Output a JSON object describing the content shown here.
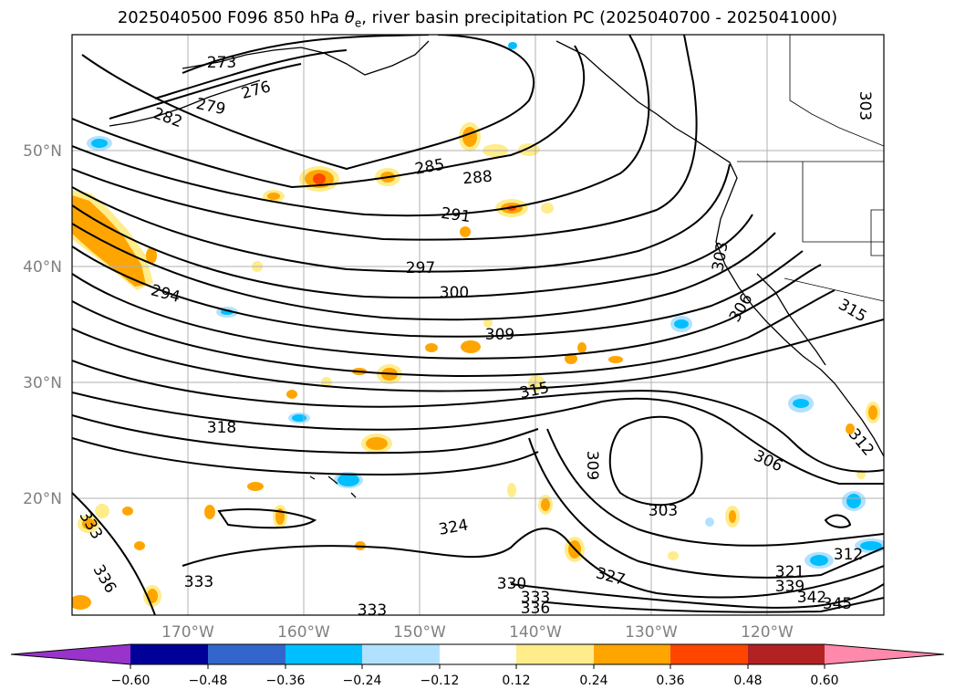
{
  "title": {
    "prefix": "2025040500 F096 850 hPa ",
    "theta": "θ",
    "theta_sub": "e",
    "suffix": ", river basin precipitation PC (2025040700 - 2025041000)"
  },
  "lat_labels": [
    "50°N",
    "40°N",
    "30°N",
    "20°N"
  ],
  "lon_labels": [
    "170°W",
    "160°W",
    "150°W",
    "140°W",
    "130°W",
    "120°W"
  ],
  "contour_labels": [
    "273",
    "276",
    "279",
    "282",
    "285",
    "288",
    "291",
    "294",
    "297",
    "300",
    "303",
    "306",
    "309",
    "312",
    "315",
    "318",
    "321",
    "324",
    "327",
    "330",
    "333",
    "336",
    "339",
    "342",
    "345"
  ],
  "colorbar": {
    "ticks": [
      "−0.60",
      "−0.48",
      "−0.36",
      "−0.24",
      "−0.12",
      "0.12",
      "0.24",
      "0.36",
      "0.48",
      "0.60"
    ],
    "colors": {
      "lt_neg060": "#9933cc",
      "neg060_neg048": "#000099",
      "neg048_neg036": "#3366cc",
      "neg036_neg024": "#00bfff",
      "neg024_neg012": "#b0e2ff",
      "neg012_012": "#ffffff",
      "p012_p024": "#ffec8b",
      "p024_p036": "#ffa500",
      "p036_p048": "#ff4500",
      "p048_p060": "#b22222",
      "gt_p060": "#ff89aa"
    }
  },
  "chart_data": {
    "type": "contour map",
    "variable": "850 hPa theta-e (K), river basin precipitation PC",
    "lon_range": [
      -180,
      -110
    ],
    "lat_range": [
      10,
      60
    ],
    "grid": true,
    "theta_e_contour_levels": [
      273,
      276,
      279,
      282,
      285,
      288,
      291,
      294,
      297,
      300,
      303,
      306,
      309,
      312,
      315,
      318,
      321,
      324,
      327,
      330,
      333,
      336,
      339,
      342,
      345
    ],
    "shading_levels": [
      -0.6,
      -0.48,
      -0.36,
      -0.24,
      -0.12,
      0.12,
      0.24,
      0.36,
      0.48,
      0.6
    ]
  }
}
